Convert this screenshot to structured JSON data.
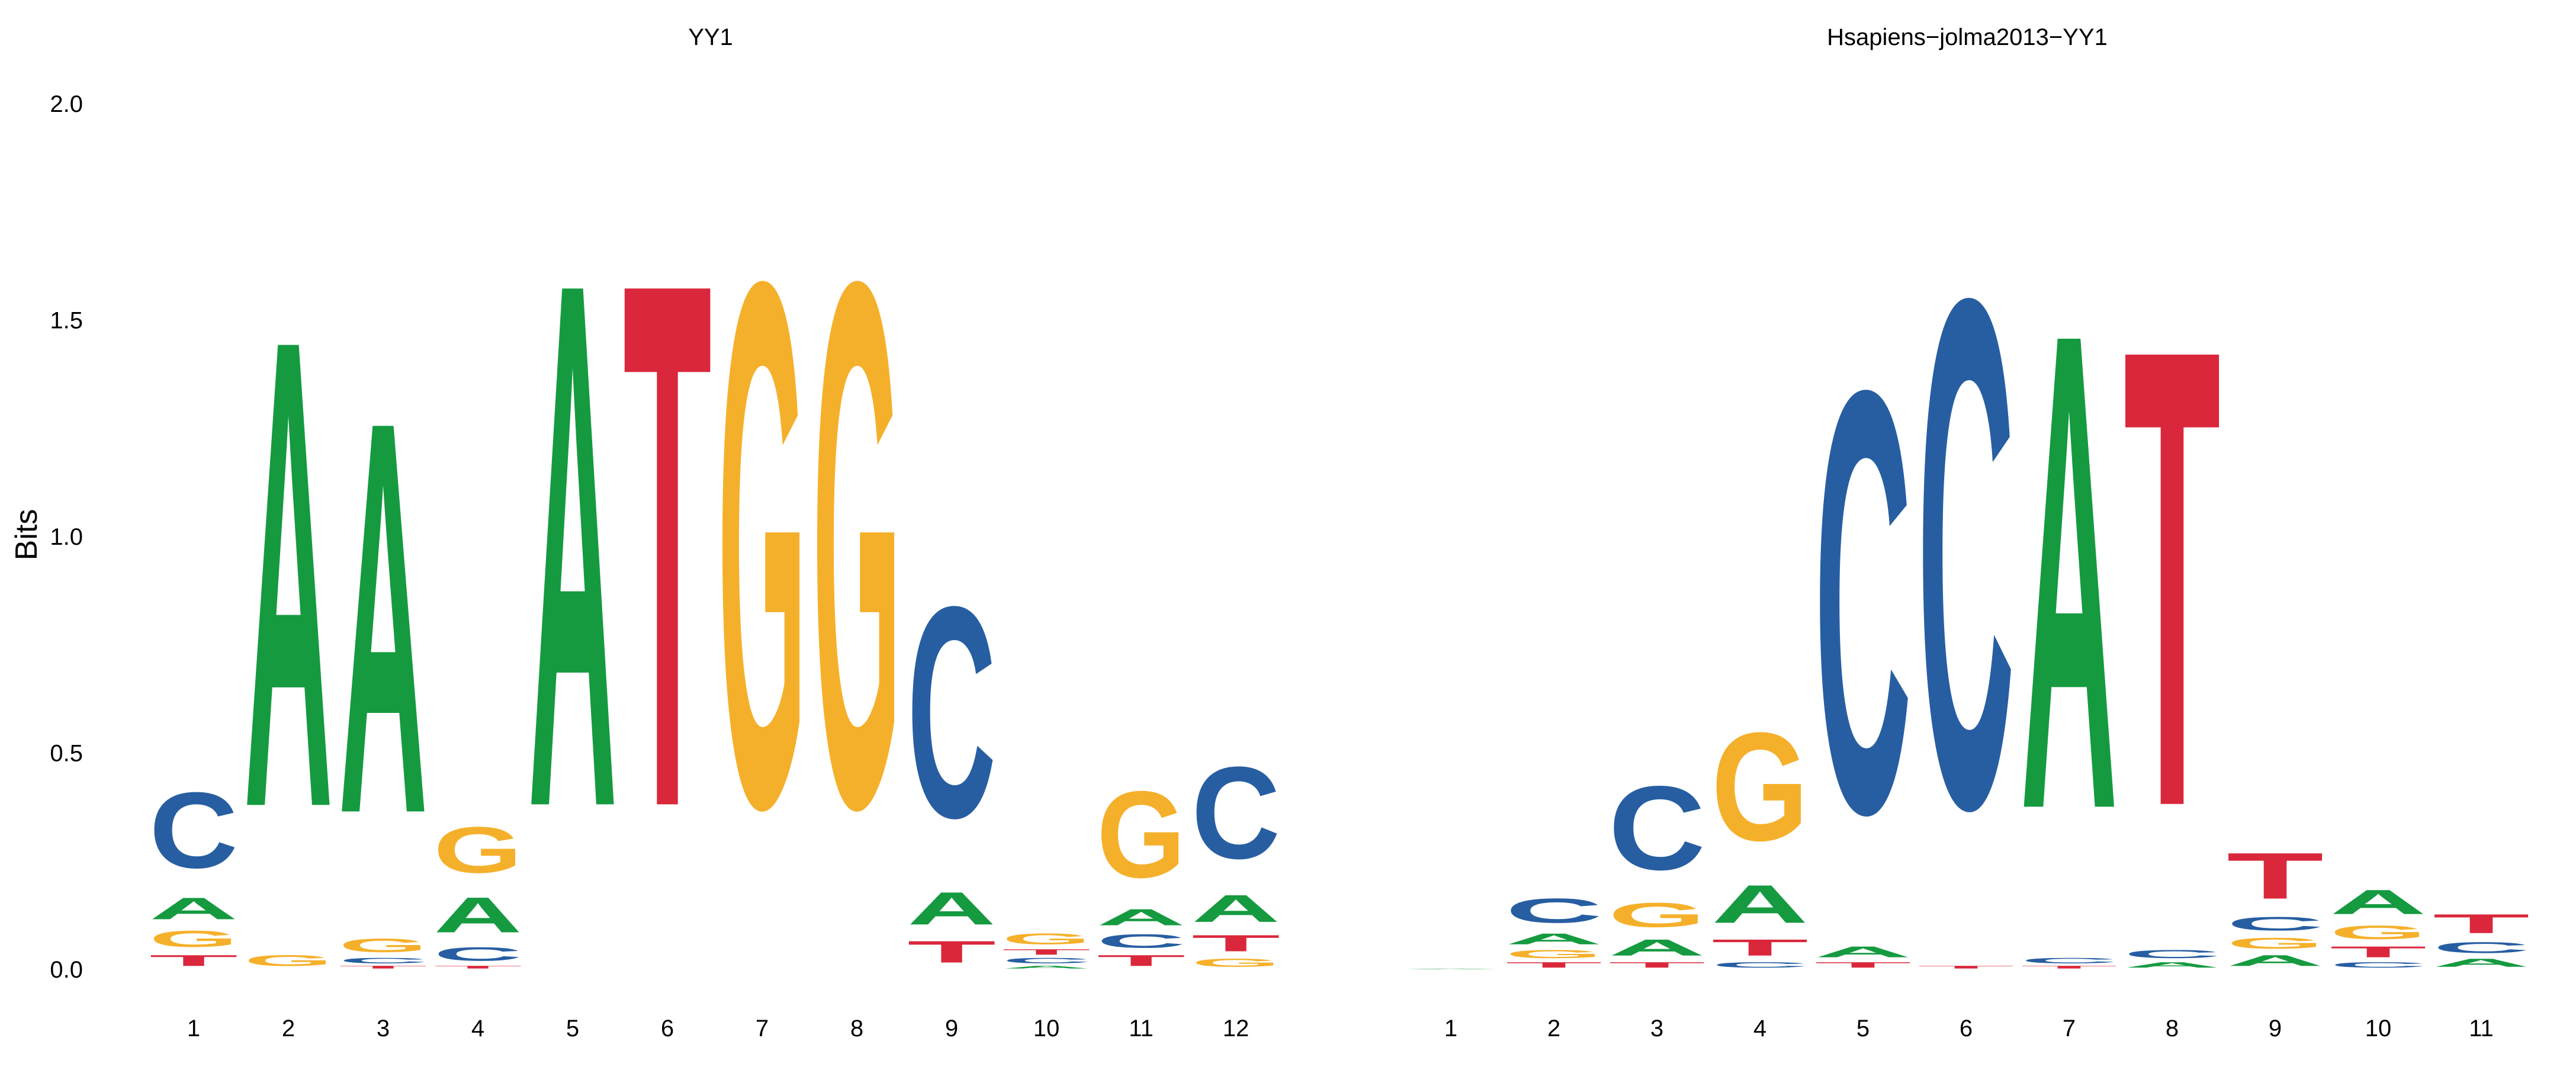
{
  "colors": {
    "A": "#159A40",
    "C": "#275EA2",
    "G": "#F5B02B",
    "T": "#DA273B"
  },
  "y_axis": {
    "label": "Bits",
    "ticks": [
      "0.0",
      "0.5",
      "1.0",
      "1.5",
      "2.0"
    ]
  },
  "chart_data": [
    {
      "type": "sequence-logo",
      "title": "YY1",
      "ylabel": "Bits",
      "ylim": [
        0,
        2.0
      ],
      "positions": [
        {
          "x": "1",
          "letters": [
            {
              "base": "T",
              "bits": 0.04
            },
            {
              "base": "G",
              "bits": 0.06
            },
            {
              "base": "A",
              "bits": 0.08
            },
            {
              "base": "C",
              "bits": 0.28
            }
          ]
        },
        {
          "x": "2",
          "letters": [
            {
              "base": "G",
              "bits": 0.04
            },
            {
              "base": "A",
              "bits": 1.73
            }
          ]
        },
        {
          "x": "3",
          "letters": [
            {
              "base": "T",
              "bits": 0.01
            },
            {
              "base": "C",
              "bits": 0.02
            },
            {
              "base": "G",
              "bits": 0.05
            },
            {
              "base": "A",
              "bits": 1.45
            }
          ]
        },
        {
          "x": "4",
          "letters": [
            {
              "base": "T",
              "bits": 0.01
            },
            {
              "base": "C",
              "bits": 0.05
            },
            {
              "base": "A",
              "bits": 0.13
            },
            {
              "base": "G",
              "bits": 0.17
            }
          ]
        },
        {
          "x": "5",
          "letters": [
            {
              "base": "A",
              "bits": 1.94
            }
          ]
        },
        {
          "x": "6",
          "letters": [
            {
              "base": "T",
              "bits": 1.94
            }
          ]
        },
        {
          "x": "7",
          "letters": [
            {
              "base": "G",
              "bits": 1.94
            }
          ]
        },
        {
          "x": "8",
          "letters": [
            {
              "base": "G",
              "bits": 1.94
            }
          ]
        },
        {
          "x": "9",
          "letters": [
            {
              "base": "T",
              "bits": 0.08
            },
            {
              "base": "A",
              "bits": 0.12
            },
            {
              "base": "C",
              "bits": 0.78
            }
          ]
        },
        {
          "x": "10",
          "letters": [
            {
              "base": "A",
              "bits": 0.01
            },
            {
              "base": "C",
              "bits": 0.02
            },
            {
              "base": "T",
              "bits": 0.02
            },
            {
              "base": "G",
              "bits": 0.04
            }
          ]
        },
        {
          "x": "11",
          "letters": [
            {
              "base": "T",
              "bits": 0.04
            },
            {
              "base": "C",
              "bits": 0.05
            },
            {
              "base": "A",
              "bits": 0.06
            },
            {
              "base": "G",
              "bits": 0.32
            }
          ]
        },
        {
          "x": "12",
          "letters": [
            {
              "base": "G",
              "bits": 0.03
            },
            {
              "base": "T",
              "bits": 0.06
            },
            {
              "base": "A",
              "bits": 0.1
            },
            {
              "base": "C",
              "bits": 0.34
            }
          ]
        }
      ]
    },
    {
      "type": "sequence-logo",
      "title": "Hsapiens−jolma2013−YY1",
      "ylabel": "Bits",
      "ylim": [
        0,
        2.0
      ],
      "positions": [
        {
          "x": "1",
          "letters": [
            {
              "base": "A",
              "bits": 0.002
            }
          ]
        },
        {
          "x": "2",
          "letters": [
            {
              "base": "T",
              "bits": 0.02
            },
            {
              "base": "G",
              "bits": 0.03
            },
            {
              "base": "A",
              "bits": 0.04
            },
            {
              "base": "C",
              "bits": 0.09
            }
          ]
        },
        {
          "x": "3",
          "letters": [
            {
              "base": "T",
              "bits": 0.02
            },
            {
              "base": "A",
              "bits": 0.06
            },
            {
              "base": "G",
              "bits": 0.09
            },
            {
              "base": "C",
              "bits": 0.31
            }
          ]
        },
        {
          "x": "4",
          "letters": [
            {
              "base": "C",
              "bits": 0.02
            },
            {
              "base": "T",
              "bits": 0.06
            },
            {
              "base": "A",
              "bits": 0.14
            },
            {
              "base": "G",
              "bits": 0.4
            }
          ]
        },
        {
          "x": "5",
          "letters": [
            {
              "base": "T",
              "bits": 0.02
            },
            {
              "base": "A",
              "bits": 0.04
            },
            {
              "base": "C",
              "bits": 1.56
            }
          ]
        },
        {
          "x": "6",
          "letters": [
            {
              "base": "T",
              "bits": 0.01
            },
            {
              "base": "C",
              "bits": 1.88
            }
          ]
        },
        {
          "x": "7",
          "letters": [
            {
              "base": "T",
              "bits": 0.01
            },
            {
              "base": "C",
              "bits": 0.02
            },
            {
              "base": "A",
              "bits": 1.76
            }
          ]
        },
        {
          "x": "8",
          "letters": [
            {
              "base": "A",
              "bits": 0.02
            },
            {
              "base": "C",
              "bits": 0.03
            },
            {
              "base": "T",
              "bits": 1.69
            }
          ]
        },
        {
          "x": "9",
          "letters": [
            {
              "base": "A",
              "bits": 0.04
            },
            {
              "base": "G",
              "bits": 0.04
            },
            {
              "base": "C",
              "bits": 0.05
            },
            {
              "base": "T",
              "bits": 0.17
            }
          ]
        },
        {
          "x": "10",
          "letters": [
            {
              "base": "C",
              "bits": 0.02
            },
            {
              "base": "T",
              "bits": 0.04
            },
            {
              "base": "G",
              "bits": 0.05
            },
            {
              "base": "A",
              "bits": 0.09
            }
          ]
        },
        {
          "x": "11",
          "letters": [
            {
              "base": "A",
              "bits": 0.03
            },
            {
              "base": "C",
              "bits": 0.04
            },
            {
              "base": "T",
              "bits": 0.07
            }
          ]
        }
      ]
    }
  ]
}
